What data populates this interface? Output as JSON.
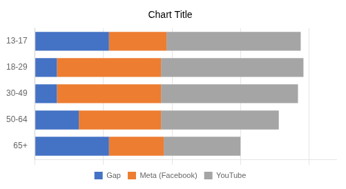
{
  "chart_data": {
    "type": "bar",
    "orientation": "horizontal",
    "stacked": true,
    "title": "Chart Title",
    "categories": [
      "13-17",
      "18-29",
      "30-49",
      "50-64",
      "65+"
    ],
    "series": [
      {
        "name": "Gap",
        "color": "#4472C4",
        "values": [
          27,
          8,
          8,
          16,
          27
        ]
      },
      {
        "name": "Meta (Facebook)",
        "color": "#ED7D31",
        "values": [
          21,
          38,
          38,
          30,
          20
        ]
      },
      {
        "name": "YouTube",
        "color": "#A5A5A5",
        "values": [
          49,
          52,
          50,
          43,
          28
        ]
      }
    ],
    "xlim": [
      0,
      110
    ],
    "xticks": [
      0,
      25,
      50,
      75,
      100
    ],
    "grid": true,
    "legend": "bottom",
    "tick_labels": "y"
  }
}
